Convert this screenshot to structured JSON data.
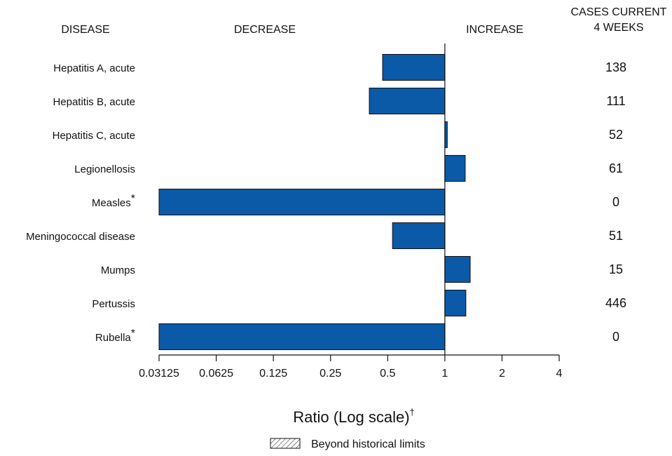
{
  "chart_data": {
    "type": "bar",
    "orientation": "horizontal",
    "headers": {
      "disease": "DISEASE",
      "decrease": "DECREASE",
      "increase": "INCREASE",
      "cases_line1": "CASES CURRENT",
      "cases_line2": "4 WEEKS"
    },
    "categories": [
      "Hepatitis A, acute",
      "Hepatitis B, acute",
      "Hepatitis C, acute",
      "Legionellosis",
      "Measles",
      "Meningococcal disease",
      "Mumps",
      "Pertussis",
      "Rubella"
    ],
    "footnote_marks": [
      "",
      "",
      "",
      "",
      "*",
      "",
      "",
      "",
      "*"
    ],
    "values": [
      0.47,
      0.4,
      1.03,
      1.28,
      0.03125,
      0.53,
      1.36,
      1.29,
      0.03125
    ],
    "cases": [
      "138",
      "111",
      "52",
      "61",
      "0",
      "51",
      "15",
      "446",
      "0"
    ],
    "x_scale": "log2",
    "xlim": [
      0.03125,
      4
    ],
    "baseline": 1,
    "ticks": [
      0.03125,
      0.0625,
      0.125,
      0.25,
      0.5,
      1,
      2,
      4
    ],
    "tick_labels": [
      "0.03125",
      "0.0625",
      "0.125",
      "0.25",
      "0.5",
      "1",
      "2",
      "4"
    ],
    "xlabel": "Ratio (Log scale)",
    "xlabel_mark": "†",
    "legend": {
      "label": "Beyond historical limits",
      "placement": "bottom-center"
    },
    "grid": false,
    "bar_color": "#0b5aa8",
    "bar_stroke": "#111111"
  }
}
